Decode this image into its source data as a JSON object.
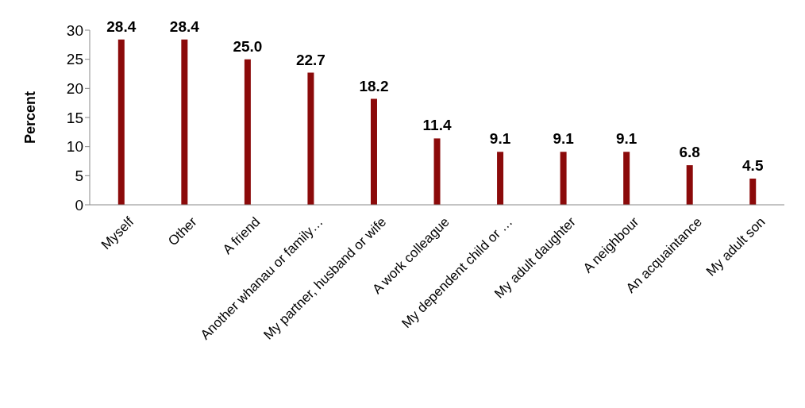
{
  "chart_data": {
    "type": "bar",
    "ylabel": "Percent",
    "categories": [
      "Myself",
      "Other",
      "A friend",
      "Another whanau or family…",
      "My partner, husband or wife",
      "A work colleague",
      "My dependent child or …",
      "My adult daughter",
      "A neighbour",
      "An acquaintance",
      "My adult son"
    ],
    "values": [
      28.4,
      28.4,
      25.0,
      22.7,
      18.2,
      11.4,
      9.1,
      9.1,
      9.1,
      6.8,
      4.5
    ],
    "value_labels": [
      "28.4",
      "28.4",
      "25.0",
      "22.7",
      "18.2",
      "11.4",
      "9.1",
      "9.1",
      "9.1",
      "6.8",
      "4.5"
    ],
    "color": "#8b0a0a",
    "ylim": [
      0,
      30
    ],
    "yticks": [
      0,
      5,
      10,
      15,
      20,
      25,
      30
    ],
    "grid": false,
    "legend": false
  }
}
